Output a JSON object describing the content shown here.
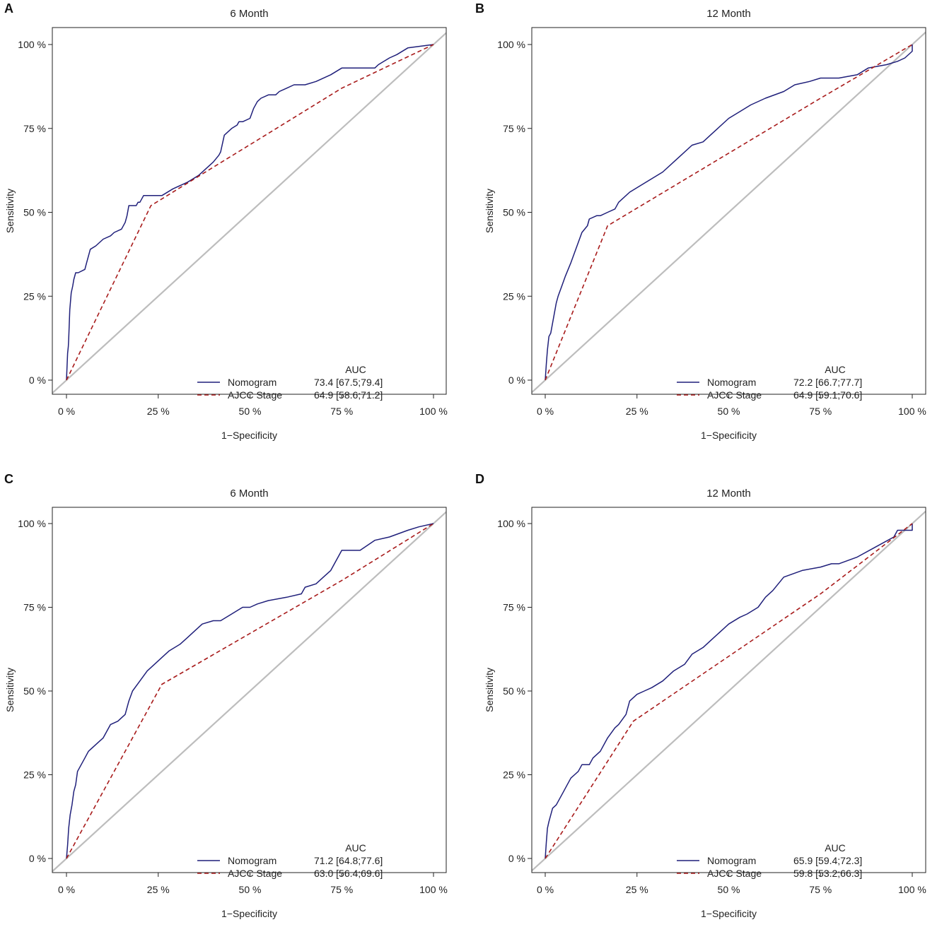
{
  "chart_data": [
    {
      "type": "line",
      "panel": "A",
      "title": "6 Month",
      "xlabel": "1−Specificity",
      "ylabel": "Sensitivity",
      "xlim": [
        0,
        100
      ],
      "ylim": [
        0,
        100
      ],
      "x_ticks": [
        0,
        25,
        50,
        75,
        100
      ],
      "y_ticks": [
        0,
        25,
        50,
        75,
        100
      ],
      "x_tick_labels": [
        "0 %",
        "25 %",
        "50 %",
        "75 %",
        "100 %"
      ],
      "y_tick_labels": [
        "0 %",
        "25 %",
        "50 %",
        "75 %",
        "100 %"
      ],
      "reference_line": {
        "x": [
          0,
          100
        ],
        "y": [
          0,
          100
        ],
        "color": "#bdbdbd"
      },
      "legend_header": "AUC",
      "series": [
        {
          "name": "Nomogram",
          "auc_label": "73.4 [67.5;79.4]",
          "color": "#1f1f7a",
          "style": "solid",
          "x": [
            0,
            0.3,
            0.5,
            0.6,
            0.9,
            1.3,
            1.7,
            2.0,
            2.5,
            3.2,
            5.0,
            5.5,
            6.0,
            6.5,
            8.0,
            10.0,
            12.0,
            13.0,
            15.0,
            16.0,
            16.5,
            17.0,
            19.0,
            19.5,
            20.0,
            21.0,
            26.0,
            29.0,
            33.0,
            36.0,
            38.0,
            40.0,
            41.5,
            42.0,
            43.0,
            45.0,
            46.5,
            47.0,
            48.0,
            50.0,
            51.0,
            52.0,
            53.0,
            55.0,
            57.0,
            58.0,
            60.0,
            62.0,
            65.0,
            68.0,
            72.0,
            75.0,
            80.0,
            84.0,
            85.0,
            88.0,
            90.0,
            93.0,
            100
          ],
          "y": [
            0,
            8,
            10,
            12,
            21,
            26,
            28,
            30,
            32,
            32,
            33,
            35,
            37,
            39,
            40,
            42,
            43,
            44,
            45,
            47,
            49,
            52,
            52,
            53,
            53,
            55,
            55,
            57,
            59,
            61,
            63,
            65,
            67,
            68,
            73,
            75,
            76,
            77,
            77,
            78,
            81,
            83,
            84,
            85,
            85,
            86,
            87,
            88,
            88,
            89,
            91,
            93,
            93,
            93,
            94,
            96,
            97,
            99,
            100
          ]
        },
        {
          "name": "AJCC Stage",
          "auc_label": "64.9 [58.6;71.2]",
          "color": "#a81b1b",
          "style": "dashed",
          "x": [
            0,
            23,
            75,
            100
          ],
          "y": [
            0,
            52,
            87,
            100
          ]
        }
      ]
    },
    {
      "type": "line",
      "panel": "B",
      "title": "12 Month",
      "xlabel": "1−Specificity",
      "ylabel": "Sensitivity",
      "xlim": [
        0,
        100
      ],
      "ylim": [
        0,
        100
      ],
      "x_ticks": [
        0,
        25,
        50,
        75,
        100
      ],
      "y_ticks": [
        0,
        25,
        50,
        75,
        100
      ],
      "x_tick_labels": [
        "0 %",
        "25 %",
        "50 %",
        "75 %",
        "100 %"
      ],
      "y_tick_labels": [
        "0 %",
        "25 %",
        "50 %",
        "75 %",
        "100 %"
      ],
      "reference_line": {
        "x": [
          0,
          100
        ],
        "y": [
          0,
          100
        ],
        "color": "#bdbdbd"
      },
      "legend_header": "AUC",
      "series": [
        {
          "name": "Nomogram",
          "auc_label": "72.2 [66.7;77.7]",
          "color": "#1f1f7a",
          "style": "solid",
          "x": [
            0,
            0.3,
            0.6,
            1.0,
            1.5,
            2.0,
            2.5,
            3.0,
            3.5,
            4.5,
            5.5,
            7.0,
            8.0,
            9.0,
            10.0,
            11.5,
            12.0,
            14.0,
            15.0,
            17.0,
            19.0,
            20.0,
            23.0,
            26.0,
            29.0,
            32.0,
            35.0,
            37.0,
            40.0,
            43.0,
            45.0,
            47.0,
            50.0,
            53.0,
            56.0,
            60.0,
            65.0,
            68.0,
            72.0,
            75.0,
            80.0,
            85.0,
            88.0,
            93.0,
            96.0,
            98.0,
            100,
            100
          ],
          "y": [
            0,
            5,
            9,
            13,
            14,
            17,
            20,
            23,
            25,
            28,
            31,
            35,
            38,
            41,
            44,
            46,
            48,
            49,
            49,
            50,
            51,
            53,
            56,
            58,
            60,
            62,
            65,
            67,
            70,
            71,
            73,
            75,
            78,
            80,
            82,
            84,
            86,
            88,
            89,
            90,
            90,
            91,
            93,
            94,
            95,
            96,
            98,
            100
          ]
        },
        {
          "name": "AJCC Stage",
          "auc_label": "64.9 [59.1;70.6]",
          "color": "#a81b1b",
          "style": "dashed",
          "x": [
            0,
            17,
            75,
            100
          ],
          "y": [
            0,
            46,
            84,
            100
          ]
        }
      ]
    },
    {
      "type": "line",
      "panel": "C",
      "title": "6 Month",
      "xlabel": "1−Specificity",
      "ylabel": "Sensitivity",
      "xlim": [
        0,
        100
      ],
      "ylim": [
        0,
        100
      ],
      "x_ticks": [
        0,
        25,
        50,
        75,
        100
      ],
      "y_ticks": [
        0,
        25,
        50,
        75,
        100
      ],
      "x_tick_labels": [
        "0 %",
        "25 %",
        "50 %",
        "75 %",
        "100 %"
      ],
      "y_tick_labels": [
        "0 %",
        "25 %",
        "50 %",
        "75 %",
        "100 %"
      ],
      "reference_line": {
        "x": [
          0,
          100
        ],
        "y": [
          0,
          100
        ],
        "color": "#bdbdbd"
      },
      "legend_header": "AUC",
      "series": [
        {
          "name": "Nomogram",
          "auc_label": "71.2 [64.8;77.6]",
          "color": "#1f1f7a",
          "style": "solid",
          "x": [
            0,
            0.3,
            0.6,
            1.0,
            1.5,
            2.0,
            2.5,
            3.0,
            4.0,
            5.0,
            6.0,
            8.0,
            9.0,
            10.0,
            11.0,
            12.0,
            14.0,
            15.0,
            16.0,
            17.0,
            18.0,
            20.0,
            22.0,
            24.0,
            26.0,
            28.0,
            31.0,
            33.0,
            35.0,
            37.0,
            40.0,
            42.0,
            45.0,
            48.0,
            50.0,
            52.0,
            55.0,
            60.0,
            64.0,
            65.0,
            68.0,
            70.0,
            72.0,
            73.0,
            75.0,
            80.0,
            84.0,
            88.0,
            93.0,
            96.0,
            100
          ],
          "y": [
            0,
            4,
            9,
            13,
            16,
            20,
            22,
            26,
            28,
            30,
            32,
            34,
            35,
            36,
            38,
            40,
            41,
            42,
            43,
            47,
            50,
            53,
            56,
            58,
            60,
            62,
            64,
            66,
            68,
            70,
            71,
            71,
            73,
            75,
            75,
            76,
            77,
            78,
            79,
            81,
            82,
            84,
            86,
            88,
            92,
            92,
            95,
            96,
            98,
            99,
            100
          ]
        },
        {
          "name": "AJCC Stage",
          "auc_label": "63.0 [56.4;69.6]",
          "color": "#a81b1b",
          "style": "dashed",
          "x": [
            0,
            26,
            75,
            100
          ],
          "y": [
            0,
            52,
            83,
            100
          ]
        }
      ]
    },
    {
      "type": "line",
      "panel": "D",
      "title": "12 Month",
      "xlabel": "1−Specificity",
      "ylabel": "Sensitivity",
      "xlim": [
        0,
        100
      ],
      "ylim": [
        0,
        100
      ],
      "x_ticks": [
        0,
        25,
        50,
        75,
        100
      ],
      "y_ticks": [
        0,
        25,
        50,
        75,
        100
      ],
      "x_tick_labels": [
        "0 %",
        "25 %",
        "50 %",
        "75 %",
        "100 %"
      ],
      "y_tick_labels": [
        "0 %",
        "25 %",
        "50 %",
        "75 %",
        "100 %"
      ],
      "reference_line": {
        "x": [
          0,
          100
        ],
        "y": [
          0,
          100
        ],
        "color": "#bdbdbd"
      },
      "legend_header": "AUC",
      "series": [
        {
          "name": "Nomogram",
          "auc_label": "65.9 [59.4;72.3]",
          "color": "#1f1f7a",
          "style": "solid",
          "x": [
            0,
            0.3,
            0.6,
            1.0,
            1.5,
            2.0,
            3.0,
            4.0,
            5.0,
            6.0,
            7.0,
            8.0,
            9.0,
            10.0,
            12.0,
            13.0,
            15.0,
            17.0,
            19.0,
            20.0,
            22.0,
            22.5,
            23.0,
            25.0,
            27.0,
            29.0,
            32.0,
            35.0,
            38.0,
            40.0,
            43.0,
            45.0,
            48.0,
            50.0,
            53.0,
            55.0,
            58.0,
            60.0,
            62.0,
            65.0,
            70.0,
            75.0,
            78.0,
            80.0,
            85.0,
            90.0,
            95.0,
            96.0,
            100,
            100
          ],
          "y": [
            0,
            5,
            9,
            11,
            13,
            15,
            16,
            18,
            20,
            22,
            24,
            25,
            26,
            28,
            28,
            30,
            32,
            36,
            39,
            40,
            43,
            45,
            47,
            49,
            50,
            51,
            53,
            56,
            58,
            61,
            63,
            65,
            68,
            70,
            72,
            73,
            75,
            78,
            80,
            84,
            86,
            87,
            88,
            88,
            90,
            93,
            96,
            98,
            98,
            100
          ]
        },
        {
          "name": "AJCC Stage",
          "auc_label": "59.8 [53.2;66.3]",
          "color": "#a81b1b",
          "style": "dashed",
          "x": [
            0,
            24,
            75,
            100
          ],
          "y": [
            0,
            41,
            79,
            100
          ]
        }
      ]
    }
  ]
}
